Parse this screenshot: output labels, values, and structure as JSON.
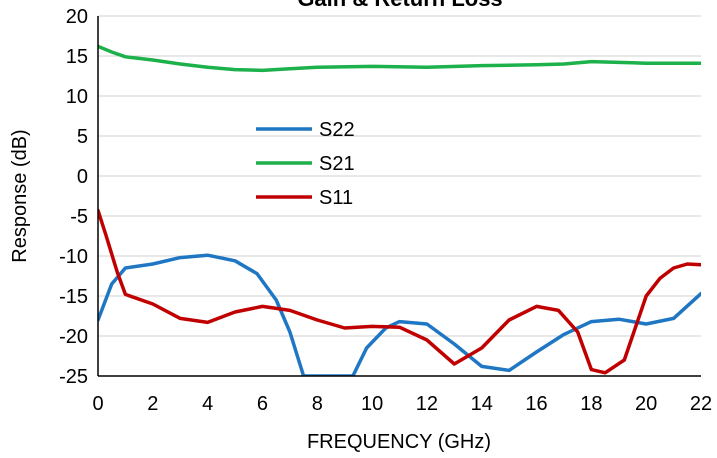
{
  "chart_data": {
    "type": "line",
    "title": "Gain & Return Loss",
    "xlabel": "FREQUENCY (GHz)",
    "ylabel": "Response (dB)",
    "xlim": [
      0,
      22
    ],
    "ylim": [
      -25,
      20
    ],
    "xticks": [
      "0",
      "2",
      "4",
      "6",
      "8",
      "10",
      "12",
      "14",
      "16",
      "18",
      "20",
      "22"
    ],
    "yticks": [
      "-25",
      "-20",
      "-15",
      "-10",
      "-5",
      "0",
      "5",
      "10",
      "15",
      "20"
    ],
    "grid": "horizontal",
    "legend_position": "center-left",
    "series": [
      {
        "name": "S22",
        "color": "#1f77c4",
        "points": [
          [
            0,
            -18
          ],
          [
            0.5,
            -13.5
          ],
          [
            1,
            -11.5
          ],
          [
            2,
            -11
          ],
          [
            3,
            -10.2
          ],
          [
            4,
            -9.9
          ],
          [
            5,
            -10.6
          ],
          [
            5.8,
            -12.2
          ],
          [
            6.5,
            -15.5
          ],
          [
            7,
            -19.5
          ],
          [
            7.5,
            -25
          ],
          [
            9.3,
            -25
          ],
          [
            9.8,
            -21.5
          ],
          [
            10.5,
            -19
          ],
          [
            11,
            -18.2
          ],
          [
            12,
            -18.5
          ],
          [
            13,
            -21
          ],
          [
            14,
            -23.8
          ],
          [
            15,
            -24.3
          ],
          [
            16,
            -22
          ],
          [
            17,
            -19.8
          ],
          [
            18,
            -18.2
          ],
          [
            19,
            -17.9
          ],
          [
            20,
            -18.5
          ],
          [
            21,
            -17.8
          ],
          [
            22,
            -14.7
          ]
        ]
      },
      {
        "name": "S21",
        "color": "#1db14b",
        "points": [
          [
            0,
            16.2
          ],
          [
            0.5,
            15.5
          ],
          [
            1,
            14.9
          ],
          [
            2,
            14.5
          ],
          [
            3,
            14
          ],
          [
            4,
            13.6
          ],
          [
            5,
            13.3
          ],
          [
            6,
            13.2
          ],
          [
            7,
            13.4
          ],
          [
            8,
            13.6
          ],
          [
            10,
            13.7
          ],
          [
            12,
            13.6
          ],
          [
            14,
            13.8
          ],
          [
            16,
            13.9
          ],
          [
            17,
            14
          ],
          [
            18,
            14.3
          ],
          [
            19,
            14.2
          ],
          [
            20,
            14.1
          ],
          [
            22,
            14.1
          ]
        ]
      },
      {
        "name": "S11",
        "color": "#c00000",
        "points": [
          [
            0,
            -4.3
          ],
          [
            0.3,
            -7.5
          ],
          [
            0.7,
            -12
          ],
          [
            1,
            -14.8
          ],
          [
            2,
            -16
          ],
          [
            3,
            -17.8
          ],
          [
            4,
            -18.3
          ],
          [
            5,
            -17
          ],
          [
            6,
            -16.3
          ],
          [
            7,
            -16.8
          ],
          [
            8,
            -18
          ],
          [
            9,
            -19
          ],
          [
            10,
            -18.8
          ],
          [
            11,
            -18.9
          ],
          [
            12,
            -20.5
          ],
          [
            13,
            -23.5
          ],
          [
            14,
            -21.5
          ],
          [
            15,
            -18
          ],
          [
            16,
            -16.3
          ],
          [
            16.8,
            -16.8
          ],
          [
            17.5,
            -19.5
          ],
          [
            18,
            -24.2
          ],
          [
            18.5,
            -24.6
          ],
          [
            19.2,
            -23
          ],
          [
            20,
            -15
          ],
          [
            20.5,
            -12.8
          ],
          [
            21,
            -11.5
          ],
          [
            21.5,
            -11
          ],
          [
            22,
            -11.1
          ]
        ]
      }
    ]
  }
}
